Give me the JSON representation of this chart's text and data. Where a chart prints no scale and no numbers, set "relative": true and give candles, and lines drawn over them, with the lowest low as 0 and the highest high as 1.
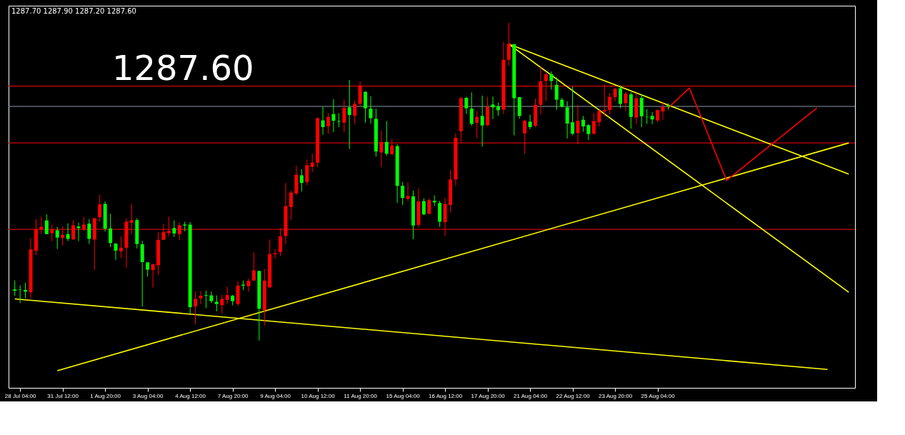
{
  "chart_data": {
    "type": "candlestick",
    "relative": true,
    "annotations": [
      "1287.70 1287.90 1287.20 1287.60",
      "1287.60"
    ],
    "categories": [
      null,
      "28 Jul 04:00",
      null,
      null,
      null,
      null,
      null,
      null,
      null,
      "31 Jul 12:00",
      null,
      null,
      null,
      null,
      null,
      null,
      null,
      "1 Aug 20:00",
      null,
      null,
      null,
      null,
      null,
      null,
      null,
      "3 Aug 04:00",
      null,
      null,
      null,
      null,
      null,
      null,
      null,
      "4 Aug 12:00",
      null,
      null,
      null,
      null,
      null,
      null,
      null,
      "7 Aug 20:00",
      null,
      null,
      null,
      null,
      null,
      null,
      null,
      "9 Aug 04:00",
      null,
      null,
      null,
      null,
      null,
      null,
      null,
      "10 Aug 12:00",
      null,
      null,
      null,
      null,
      null,
      null,
      null,
      "11 Aug 20:00",
      null,
      null,
      null,
      null,
      null,
      null,
      null,
      "15 Aug 04:00",
      null,
      null,
      null,
      null,
      null,
      null,
      null,
      "16 Aug 12:00",
      null,
      null,
      null,
      null,
      null,
      null,
      null,
      "17 Aug 20:00",
      null,
      null,
      null,
      null,
      null,
      null,
      null,
      "21 Aug 04:00",
      null,
      null,
      null,
      null,
      null,
      null,
      null,
      "22 Aug 12:00",
      null,
      null,
      null,
      null,
      null,
      null,
      null,
      "23 Aug 20:00",
      null,
      null,
      null,
      null,
      null,
      null,
      null,
      "25 Aug 04:00",
      null,
      null,
      null,
      null,
      null,
      null,
      null,
      null,
      null,
      null,
      null,
      null,
      null,
      null,
      null,
      null,
      null,
      null,
      null,
      null,
      null,
      null,
      null,
      null,
      null,
      null,
      null,
      null,
      null,
      null,
      null,
      null,
      null,
      null,
      null,
      null
    ],
    "ohlc": [
      [
        0.161,
        0.189,
        0.141,
        0.157
      ],
      [
        0.161,
        0.174,
        0.118,
        0.16
      ],
      [
        0.159,
        0.182,
        0.133,
        0.154
      ],
      [
        0.152,
        0.322,
        0.133,
        0.287
      ],
      [
        0.283,
        0.382,
        0.269,
        0.35
      ],
      [
        0.35,
        0.39,
        0.335,
        0.358
      ],
      [
        0.378,
        0.397,
        0.335,
        0.335
      ],
      [
        0.338,
        0.365,
        0.313,
        0.35
      ],
      [
        0.347,
        0.358,
        0.288,
        0.324
      ],
      [
        0.323,
        0.359,
        0.3,
        0.333
      ],
      [
        0.335,
        0.369,
        0.313,
        0.32
      ],
      [
        0.318,
        0.379,
        0.318,
        0.363
      ],
      [
        0.359,
        0.371,
        0.313,
        0.354
      ],
      [
        0.35,
        0.388,
        0.345,
        0.365
      ],
      [
        0.368,
        0.382,
        0.304,
        0.32
      ],
      [
        0.318,
        0.385,
        0.222,
        0.385
      ],
      [
        0.388,
        0.459,
        0.373,
        0.429
      ],
      [
        0.43,
        0.438,
        0.343,
        0.352
      ],
      [
        0.353,
        0.399,
        0.294,
        0.307
      ],
      [
        0.305,
        0.307,
        0.254,
        0.283
      ],
      [
        0.281,
        0.328,
        0.26,
        0.292
      ],
      [
        0.292,
        0.385,
        0.229,
        0.374
      ],
      [
        0.371,
        0.43,
        0.335,
        0.379
      ],
      [
        0.379,
        0.385,
        0.29,
        0.304
      ],
      [
        0.303,
        0.314,
        0.107,
        0.247
      ],
      [
        0.246,
        0.246,
        0.201,
        0.223
      ],
      [
        0.222,
        0.242,
        0.167,
        0.24
      ],
      [
        0.237,
        0.341,
        0.207,
        0.317
      ],
      [
        0.317,
        0.367,
        0.317,
        0.341
      ],
      [
        0.338,
        0.39,
        0.328,
        0.345
      ],
      [
        0.354,
        0.378,
        0.326,
        0.337
      ],
      [
        0.335,
        0.371,
        0.317,
        0.363
      ],
      [
        0.365,
        0.374,
        0.344,
        0.362
      ],
      [
        0.365,
        0.373,
        0.085,
        0.105
      ],
      [
        0.107,
        0.154,
        0.051,
        0.131
      ],
      [
        0.133,
        0.156,
        0.115,
        0.141
      ],
      [
        0.143,
        0.157,
        0.102,
        0.141
      ],
      [
        0.142,
        0.154,
        0.118,
        0.124
      ],
      [
        0.122,
        0.142,
        0.092,
        0.115
      ],
      [
        0.111,
        0.144,
        0.085,
        0.131
      ],
      [
        0.128,
        0.169,
        0.115,
        0.143
      ],
      [
        0.141,
        0.144,
        0.111,
        0.124
      ],
      [
        0.115,
        0.187,
        0.109,
        0.173
      ],
      [
        0.176,
        0.189,
        0.159,
        0.173
      ],
      [
        0.171,
        0.195,
        0.154,
        0.188
      ],
      [
        0.189,
        0.277,
        0.187,
        0.221
      ],
      [
        0.219,
        0.219,
        0,
        0.1
      ],
      [
        0.096,
        0.225,
        0.047,
        0.189
      ],
      [
        0.167,
        0.318,
        0.167,
        0.272
      ],
      [
        0.272,
        0.287,
        0.257,
        0.275
      ],
      [
        0.278,
        0.354,
        0.266,
        0.328
      ],
      [
        0.329,
        0.496,
        0.303,
        0.423
      ],
      [
        0.42,
        0.472,
        0.38,
        0.466
      ],
      [
        0.463,
        0.55,
        0.457,
        0.522
      ],
      [
        0.52,
        0.539,
        0.469,
        0.496
      ],
      [
        0.499,
        0.569,
        0.489,
        0.552
      ],
      [
        0.547,
        0.588,
        0.53,
        0.56
      ],
      [
        0.56,
        0.702,
        0.546,
        0.7
      ],
      [
        0.693,
        0.736,
        0.648,
        0.672
      ],
      [
        0.674,
        0.716,
        0.651,
        0.704
      ],
      [
        0.713,
        0.76,
        0.656,
        0.692
      ],
      [
        0.691,
        0.716,
        0.672,
        0.689
      ],
      [
        0.686,
        0.758,
        0.656,
        0.732
      ],
      [
        0.734,
        0.82,
        0.603,
        0.71
      ],
      [
        0.708,
        0.756,
        0.681,
        0.745
      ],
      [
        0.745,
        0.816,
        0.737,
        0.803
      ],
      [
        0.783,
        0.784,
        0.686,
        0.731
      ],
      [
        0.73,
        0.769,
        0.683,
        0.7
      ],
      [
        0.698,
        0.73,
        0.579,
        0.595
      ],
      [
        0.592,
        0.661,
        0.546,
        0.625
      ],
      [
        0.625,
        0.691,
        0.582,
        0.588
      ],
      [
        0.586,
        0.635,
        0.585,
        0.614
      ],
      [
        0.612,
        0.618,
        0.433,
        0.487
      ],
      [
        0.487,
        0.499,
        0.427,
        0.449
      ],
      [
        0.446,
        0.498,
        0.439,
        0.455
      ],
      [
        0.454,
        0.472,
        0.319,
        0.362
      ],
      [
        0.364,
        0.479,
        0.356,
        0.438
      ],
      [
        0.439,
        0.448,
        0.395,
        0.397
      ],
      [
        0.399,
        0.448,
        0.397,
        0.442
      ],
      [
        0.44,
        0.457,
        0.424,
        0.435
      ],
      [
        0.433,
        0.44,
        0.358,
        0.374
      ],
      [
        0.373,
        0.448,
        0.329,
        0.43
      ],
      [
        0.427,
        0.536,
        0.403,
        0.507
      ],
      [
        0.507,
        0.653,
        0.487,
        0.638
      ],
      [
        0.659,
        0.767,
        0.622,
        0.763
      ],
      [
        0.764,
        0.767,
        0.713,
        0.731
      ],
      [
        0.73,
        0.781,
        0.676,
        0.682
      ],
      [
        0.685,
        0.723,
        0.637,
        0.704
      ],
      [
        0.707,
        0.771,
        0.61,
        0.677
      ],
      [
        0.678,
        0.767,
        0.674,
        0.736
      ],
      [
        0.743,
        0.768,
        0.697,
        0.734
      ],
      [
        0.737,
        0.749,
        0.708,
        0.725
      ],
      [
        0.727,
        0.94,
        0.713,
        0.884
      ],
      [
        0.884,
        1,
        0.865,
        0.934
      ],
      [
        0.933,
        0.933,
        0.646,
        0.763
      ],
      [
        0.766,
        0.767,
        0.698,
        0.707
      ],
      [
        0.652,
        0.695,
        0.588,
        0.692
      ],
      [
        0.689,
        0.711,
        0.665,
        0.672
      ],
      [
        0.676,
        0.762,
        0.671,
        0.742
      ],
      [
        0.742,
        0.861,
        0.712,
        0.816
      ],
      [
        0.817,
        0.842,
        0.754,
        0.838
      ],
      [
        0.839,
        0.847,
        0.79,
        0.817
      ],
      [
        0.805,
        0.829,
        0.726,
        0.758
      ],
      [
        0.758,
        0.764,
        0.734,
        0.736
      ],
      [
        0.734,
        0.753,
        0.636,
        0.683
      ],
      [
        0.687,
        0.799,
        0.646,
        0.651
      ],
      [
        0.653,
        0.742,
        0.618,
        0.692
      ],
      [
        0.695,
        0.707,
        0.657,
        0.674
      ],
      [
        0.678,
        0.681,
        0.631,
        0.65
      ],
      [
        0.651,
        0.716,
        0.648,
        0.691
      ],
      [
        0.687,
        0.726,
        0.674,
        0.722
      ],
      [
        0.721,
        0.807,
        0.706,
        0.725
      ],
      [
        0.726,
        0.779,
        0.712,
        0.767
      ],
      [
        0.766,
        0.796,
        0.753,
        0.792
      ],
      [
        0.794,
        0.803,
        0.732,
        0.745
      ],
      [
        0.747,
        0.782,
        0.722,
        0.777
      ],
      [
        0.775,
        0.781,
        0.667,
        0.704
      ],
      [
        0.702,
        0.778,
        0.681,
        0.763
      ],
      [
        0.764,
        0.775,
        0.672,
        0.706
      ],
      [
        0.704,
        0.728,
        0.682,
        0.703
      ],
      [
        0.707,
        0.719,
        0.681,
        0.696
      ],
      [
        0.693,
        0.728,
        0.687,
        0.725
      ],
      [
        0.721,
        0.749,
        0.695,
        0.736
      ],
      [
        0.74,
        0.747,
        0.727,
        0.737
      ],
      null,
      null,
      null,
      null,
      null,
      null,
      null,
      null,
      null,
      null,
      null,
      null,
      null,
      null,
      null,
      null,
      null,
      null,
      null,
      null,
      null,
      null,
      null,
      null,
      null,
      null,
      null,
      null,
      null,
      null,
      null,
      null,
      null,
      null
    ],
    "colors": [
      "#00ff00",
      "#00ff00",
      "#00ff00",
      "#ff0000",
      "#ff0000",
      "#ff0000",
      "#00ff00",
      "#ff0000",
      "#00ff00",
      "#ff0000",
      "#00ff00",
      "#ff0000",
      "#00ff00",
      "#ff0000",
      "#00ff00",
      "#ff0000",
      "#ff0000",
      "#00ff00",
      "#00ff00",
      "#00ff00",
      "#ff0000",
      "#ff0000",
      "#ff0000",
      "#00ff00",
      "#00ff00",
      "#00ff00",
      "#ff0000",
      "#ff0000",
      "#ff0000",
      "#ff0000",
      "#00ff00",
      "#ff0000",
      "#00ff00",
      "#00ff00",
      "#ff0000",
      "#ff0000",
      "#00ff00",
      "#00ff00",
      "#00ff00",
      "#ff0000",
      "#ff0000",
      "#00ff00",
      "#ff0000",
      "#00ff00",
      "#ff0000",
      "#ff0000",
      "#00ff00",
      "#ff0000",
      "#ff0000",
      "#ff0000",
      "#ff0000",
      "#ff0000",
      "#ff0000",
      "#ff0000",
      "#00ff00",
      "#ff0000",
      "#ff0000",
      "#ff0000",
      "#00ff00",
      "#ff0000",
      "#00ff00",
      "#00ff00",
      "#ff0000",
      "#00ff00",
      "#ff0000",
      "#ff0000",
      "#00ff00",
      "#00ff00",
      "#00ff00",
      "#ff0000",
      "#00ff00",
      "#ff0000",
      "#00ff00",
      "#00ff00",
      "#ff0000",
      "#00ff00",
      "#ff0000",
      "#00ff00",
      "#ff0000",
      "#00ff00",
      "#00ff00",
      "#ff0000",
      "#ff0000",
      "#ff0000",
      "#ff0000",
      "#00ff00",
      "#00ff00",
      "#ff0000",
      "#00ff00",
      "#ff0000",
      "#00ff00",
      "#00ff00",
      "#ff0000",
      "#ff0000",
      "#00ff00",
      "#00ff00",
      "#ff0000",
      "#00ff00",
      "#ff0000",
      "#ff0000",
      "#ff0000",
      "#00ff00",
      "#00ff00",
      "#00ff00",
      "#00ff00",
      "#00ff00",
      "#ff0000",
      "#00ff00",
      "#00ff00",
      "#ff0000",
      "#ff0000",
      "#ff0000",
      "#ff0000",
      "#ff0000",
      "#00ff00",
      "#ff0000",
      "#00ff00",
      "#ff0000",
      "#00ff00",
      "#00ff00",
      "#00ff00",
      "#ff0000",
      "#ff0000",
      "#00ff00",
      null,
      null,
      null,
      null,
      null,
      null,
      null,
      null,
      null,
      null,
      null,
      null,
      null,
      null,
      null,
      null,
      null,
      null,
      null,
      null,
      null,
      null,
      null,
      null,
      null,
      null,
      null,
      null,
      null,
      null,
      null,
      null,
      null,
      null
    ],
    "series": [
      {
        "type": "line",
        "color": "#ffff00",
        "values": [
          0.131,
          null,
          null,
          null,
          null,
          null,
          null,
          null,
          null,
          null,
          null,
          null,
          null,
          null,
          null,
          null,
          null,
          null,
          null,
          null,
          null,
          null,
          null,
          null,
          null,
          null,
          null,
          null,
          null,
          null,
          null,
          null,
          null,
          null,
          null,
          null,
          null,
          null,
          null,
          null,
          null,
          null,
          null,
          null,
          null,
          null,
          null,
          null,
          null,
          null,
          null,
          null,
          null,
          null,
          null,
          null,
          null,
          null,
          null,
          null,
          null,
          null,
          null,
          null,
          null,
          null,
          null,
          null,
          null,
          null,
          null,
          null,
          null,
          null,
          null,
          null,
          null,
          null,
          null,
          null,
          null,
          null,
          null,
          null,
          null,
          null,
          null,
          null,
          null,
          null,
          null,
          null,
          null,
          null,
          null,
          null,
          null,
          null,
          null,
          null,
          null,
          null,
          null,
          null,
          null,
          null,
          null,
          null,
          null,
          null,
          null,
          null,
          null,
          null,
          null,
          null,
          null,
          null,
          null,
          null,
          null,
          null,
          null,
          null,
          null,
          null,
          null,
          null,
          null,
          null,
          null,
          null,
          null,
          null,
          null,
          null,
          null,
          null,
          null,
          null,
          null,
          null,
          null,
          null,
          null,
          null,
          null,
          null,
          null,
          null,
          null,
          null,
          null,
          -0.091,
          null,
          null,
          null,
          null
        ]
      },
      {
        "type": "line",
        "color": "#ffff00",
        "values": [
          null,
          null,
          null,
          null,
          null,
          null,
          null,
          null,
          -0.095,
          null,
          null,
          null,
          null,
          null,
          null,
          null,
          null,
          null,
          null,
          null,
          null,
          null,
          null,
          null,
          null,
          null,
          null,
          null,
          null,
          null,
          null,
          null,
          null,
          null,
          null,
          null,
          null,
          null,
          null,
          null,
          null,
          null,
          null,
          null,
          null,
          null,
          null,
          null,
          null,
          null,
          null,
          null,
          null,
          null,
          null,
          null,
          null,
          null,
          null,
          null,
          null,
          null,
          null,
          null,
          null,
          null,
          null,
          null,
          null,
          null,
          null,
          null,
          null,
          null,
          null,
          null,
          null,
          null,
          null,
          null,
          null,
          null,
          null,
          null,
          null,
          null,
          null,
          null,
          null,
          null,
          null,
          null,
          null,
          null,
          null,
          null,
          null,
          null,
          null,
          null,
          null,
          null,
          null,
          null,
          null,
          null,
          null,
          null,
          null,
          null,
          null,
          null,
          null,
          null,
          null,
          null,
          null,
          null,
          null,
          null,
          null,
          null,
          null,
          null,
          null,
          null,
          null,
          null,
          null,
          null,
          null,
          null,
          null,
          null,
          null,
          null,
          null,
          null,
          null,
          null,
          null,
          null,
          null,
          null,
          null,
          null,
          null,
          null,
          null,
          null,
          null,
          null,
          null,
          null,
          null,
          null,
          null,
          0.622
        ]
      },
      {
        "type": "line",
        "color": "#ffff00",
        "values": [
          null,
          null,
          null,
          null,
          null,
          null,
          null,
          null,
          null,
          null,
          null,
          null,
          null,
          null,
          null,
          null,
          null,
          null,
          null,
          null,
          null,
          null,
          null,
          null,
          null,
          null,
          null,
          null,
          null,
          null,
          null,
          null,
          null,
          null,
          null,
          null,
          null,
          null,
          null,
          null,
          null,
          null,
          null,
          null,
          null,
          null,
          null,
          null,
          null,
          null,
          null,
          null,
          null,
          null,
          null,
          null,
          null,
          null,
          null,
          null,
          null,
          null,
          null,
          null,
          null,
          null,
          null,
          null,
          null,
          null,
          null,
          null,
          null,
          null,
          null,
          null,
          null,
          null,
          null,
          null,
          null,
          null,
          null,
          null,
          null,
          null,
          null,
          null,
          null,
          null,
          null,
          null,
          null,
          0.933,
          null,
          null,
          null,
          null,
          null,
          null,
          null,
          null,
          null,
          null,
          null,
          null,
          null,
          null,
          null,
          null,
          null,
          null,
          null,
          null,
          null,
          null,
          null,
          null,
          null,
          null,
          null,
          null,
          null,
          null,
          null,
          null,
          null,
          null,
          null,
          null,
          null,
          null,
          null,
          null,
          null,
          null,
          null,
          null,
          null,
          null,
          null,
          null,
          null,
          null,
          null,
          null,
          null,
          null,
          null,
          null,
          null,
          null,
          null,
          null,
          null,
          null,
          null,
          0.524
        ]
      },
      {
        "type": "line",
        "color": "#ffff00",
        "values": [
          null,
          null,
          null,
          null,
          null,
          null,
          null,
          null,
          null,
          null,
          null,
          null,
          null,
          null,
          null,
          null,
          null,
          null,
          null,
          null,
          null,
          null,
          null,
          null,
          null,
          null,
          null,
          null,
          null,
          null,
          null,
          null,
          null,
          null,
          null,
          null,
          null,
          null,
          null,
          null,
          null,
          null,
          null,
          null,
          null,
          null,
          null,
          null,
          null,
          null,
          null,
          null,
          null,
          null,
          null,
          null,
          null,
          null,
          null,
          null,
          null,
          null,
          null,
          null,
          null,
          null,
          null,
          null,
          null,
          null,
          null,
          null,
          null,
          null,
          null,
          null,
          null,
          null,
          null,
          null,
          null,
          null,
          null,
          null,
          null,
          null,
          null,
          null,
          null,
          null,
          null,
          null,
          null,
          0.933,
          null,
          null,
          null,
          null,
          null,
          null,
          null,
          null,
          null,
          null,
          null,
          null,
          null,
          null,
          null,
          null,
          null,
          null,
          null,
          null,
          null,
          null,
          null,
          null,
          null,
          null,
          null,
          null,
          null,
          null,
          null,
          null,
          null,
          null,
          null,
          null,
          null,
          null,
          null,
          null,
          null,
          null,
          null,
          null,
          null,
          null,
          null,
          null,
          null,
          null,
          null,
          null,
          null,
          null,
          null,
          null,
          null,
          null,
          null,
          null,
          null,
          null,
          null,
          0.152
        ]
      },
      {
        "type": "line",
        "color": "#ff0000",
        "values": [
          null,
          null,
          null,
          null,
          null,
          null,
          null,
          null,
          null,
          null,
          null,
          null,
          null,
          null,
          null,
          null,
          null,
          null,
          null,
          null,
          null,
          null,
          null,
          null,
          null,
          null,
          null,
          null,
          null,
          null,
          null,
          null,
          null,
          null,
          null,
          null,
          null,
          null,
          null,
          null,
          null,
          null,
          null,
          null,
          null,
          null,
          null,
          null,
          null,
          null,
          null,
          null,
          null,
          null,
          null,
          null,
          null,
          null,
          null,
          null,
          null,
          null,
          null,
          null,
          null,
          null,
          null,
          null,
          null,
          null,
          null,
          null,
          null,
          null,
          null,
          null,
          null,
          null,
          null,
          null,
          null,
          null,
          null,
          null,
          null,
          null,
          null,
          null,
          null,
          null,
          null,
          null,
          null,
          null,
          null,
          null,
          null,
          null,
          null,
          null,
          null,
          null,
          null,
          null,
          null,
          null,
          null,
          null,
          null,
          null,
          null,
          null,
          null,
          null,
          null,
          null,
          null,
          null,
          null,
          null,
          null,
          null,
          null,
          0.732,
          null,
          null,
          null,
          0.795,
          null,
          null,
          null,
          null,
          null,
          null,
          0.504,
          null,
          null,
          null,
          null,
          null,
          null,
          null,
          null,
          null,
          null,
          null,
          null,
          null,
          null,
          null,
          null,
          0.732,
          null,
          null,
          null,
          null,
          null,
          null
        ]
      }
    ],
    "ref_lines": [
      {
        "axis": "y",
        "value": 0.801,
        "color": "#ff0000"
      },
      {
        "axis": "y",
        "value": 0.737,
        "color": "#8c9aa8"
      },
      {
        "axis": "y",
        "value": 0.622,
        "color": "#ff0000"
      },
      {
        "axis": "y",
        "value": 0.35,
        "color": "#ff0000"
      }
    ]
  }
}
